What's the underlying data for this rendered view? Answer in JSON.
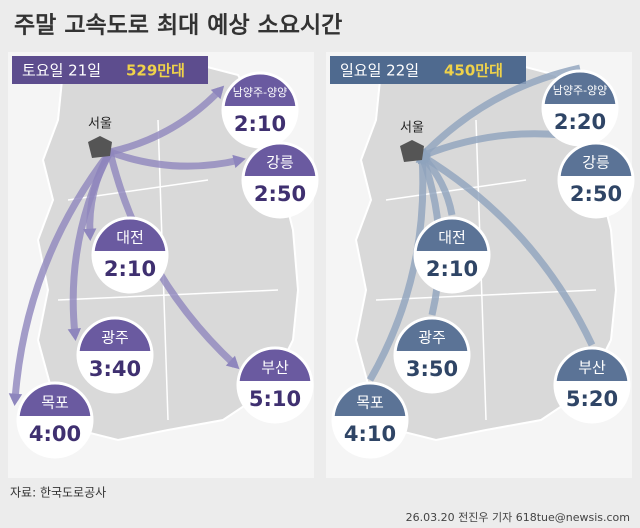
{
  "title": "주말 고속도로 최대 예상 소요시간",
  "panels": [
    {
      "day": "토요일 21일",
      "volume": "529만대",
      "origin": "서울",
      "destinations": [
        {
          "name": "남양주-양양",
          "time": "2:10"
        },
        {
          "name": "강릉",
          "time": "2:50"
        },
        {
          "name": "대전",
          "time": "2:10"
        },
        {
          "name": "광주",
          "time": "3:40"
        },
        {
          "name": "목포",
          "time": "4:00"
        },
        {
          "name": "부산",
          "time": "5:10"
        }
      ]
    },
    {
      "day": "일요일 22일",
      "volume": "450만대",
      "origin": "서울",
      "destinations": [
        {
          "name": "남양주-양양",
          "time": "2:20"
        },
        {
          "name": "강릉",
          "time": "2:50"
        },
        {
          "name": "대전",
          "time": "2:10"
        },
        {
          "name": "광주",
          "time": "3:50"
        },
        {
          "name": "목포",
          "time": "4:10"
        },
        {
          "name": "부산",
          "time": "5:20"
        }
      ]
    }
  ],
  "source": "자료: 한국도로공사",
  "credit": "26.03.20 전진우 기자 618tue@newsis.com"
}
